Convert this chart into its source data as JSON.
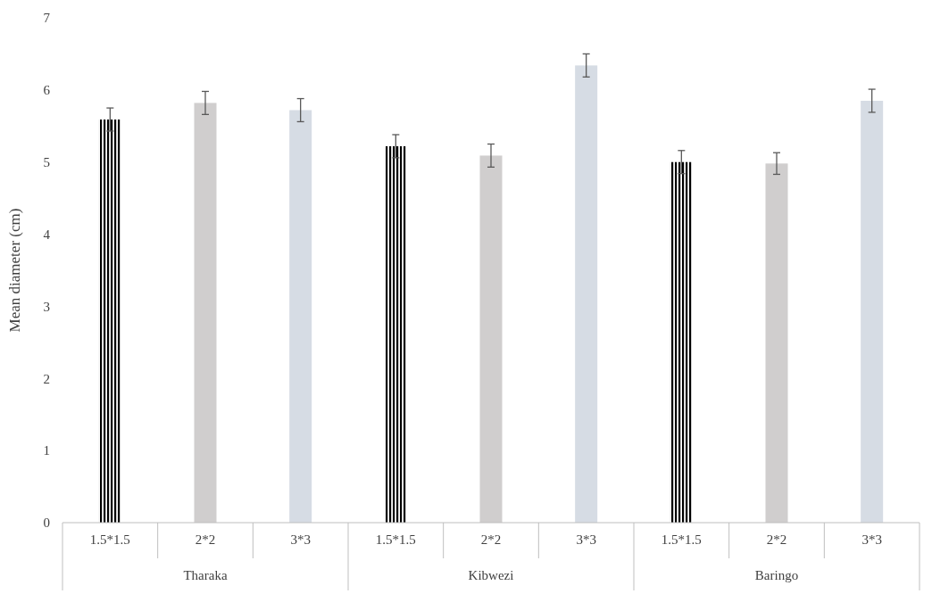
{
  "chart_data": {
    "type": "bar",
    "ylabel": "Mean diameter (cm)",
    "categories": [
      "Tharaka",
      "Kibwezi",
      "Baringo"
    ],
    "series": [
      {
        "name": "1.5*1.5",
        "color": "#000000",
        "values": [
          5.59,
          5.22,
          5.0
        ],
        "errors": [
          0.16,
          0.16,
          0.16
        ]
      },
      {
        "name": "2*2",
        "color": "#d0cece",
        "values": [
          5.82,
          5.09,
          4.98
        ],
        "errors": [
          0.16,
          0.16,
          0.15
        ]
      },
      {
        "name": "3*3",
        "color": "#d6dce4",
        "values": [
          5.72,
          6.34,
          5.85
        ],
        "errors": [
          0.16,
          0.16,
          0.16
        ]
      }
    ],
    "ylim": [
      0,
      7
    ],
    "yticks": [
      0,
      1,
      2,
      3,
      4,
      5,
      6,
      7
    ],
    "grid": false
  }
}
